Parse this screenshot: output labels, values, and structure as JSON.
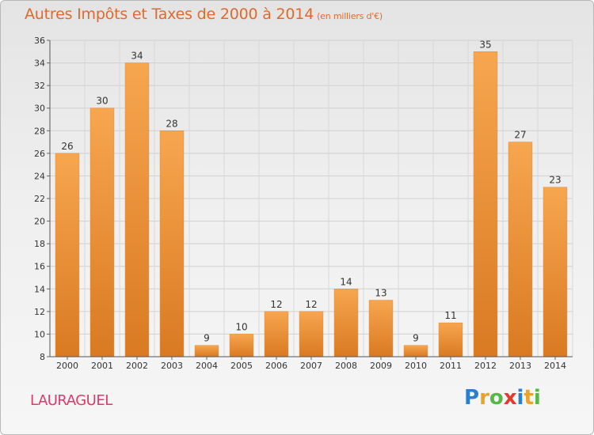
{
  "title": "Autres Impôts et Taxes de 2000 à 2014",
  "title_unit": "(en milliers d'€)",
  "commune": "LAURAGUEL",
  "logo": {
    "letters": [
      "P",
      "r",
      "o",
      "x",
      "i",
      "t",
      "i"
    ],
    "colors": [
      "#2a7fd0",
      "#e8a32a",
      "#57b847",
      "#e23b2e",
      "#2a7fd0",
      "#e8a32a",
      "#57b847"
    ]
  },
  "colors": {
    "bar": "#f39a45",
    "bar_dark": "#d97a22",
    "title": "#e2692b",
    "commune": "#dd3a6b"
  },
  "chart_data": {
    "type": "bar",
    "categories": [
      "2000",
      "2001",
      "2002",
      "2003",
      "2004",
      "2005",
      "2006",
      "2007",
      "2008",
      "2009",
      "2010",
      "2011",
      "2012",
      "2013",
      "2014"
    ],
    "values": [
      26,
      30,
      34,
      28,
      9,
      10,
      12,
      12,
      14,
      13,
      9,
      11,
      35,
      27,
      23
    ],
    "ylim": [
      8,
      36
    ],
    "yticks": [
      8,
      10,
      12,
      14,
      16,
      18,
      20,
      22,
      24,
      26,
      28,
      30,
      32,
      34,
      36
    ],
    "grid": true,
    "data_labels": true
  }
}
